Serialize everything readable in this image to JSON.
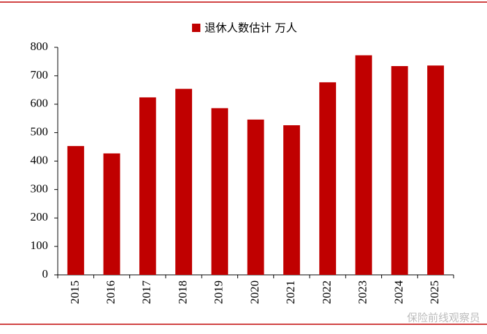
{
  "chart_data": {
    "type": "bar",
    "categories": [
      "2015",
      "2016",
      "2017",
      "2018",
      "2019",
      "2020",
      "2021",
      "2022",
      "2023",
      "2024",
      "2025"
    ],
    "series": [
      {
        "name": "退休人数估计 万人",
        "color": "#c00000",
        "values": [
          453,
          427,
          624,
          654,
          586,
          546,
          526,
          677,
          772,
          734,
          736
        ]
      }
    ],
    "ylim": [
      0,
      800
    ],
    "yticks": [
      0,
      100,
      200,
      300,
      400,
      500,
      600,
      700,
      800
    ],
    "legend": "top"
  },
  "watermark": "保险前线观察员"
}
